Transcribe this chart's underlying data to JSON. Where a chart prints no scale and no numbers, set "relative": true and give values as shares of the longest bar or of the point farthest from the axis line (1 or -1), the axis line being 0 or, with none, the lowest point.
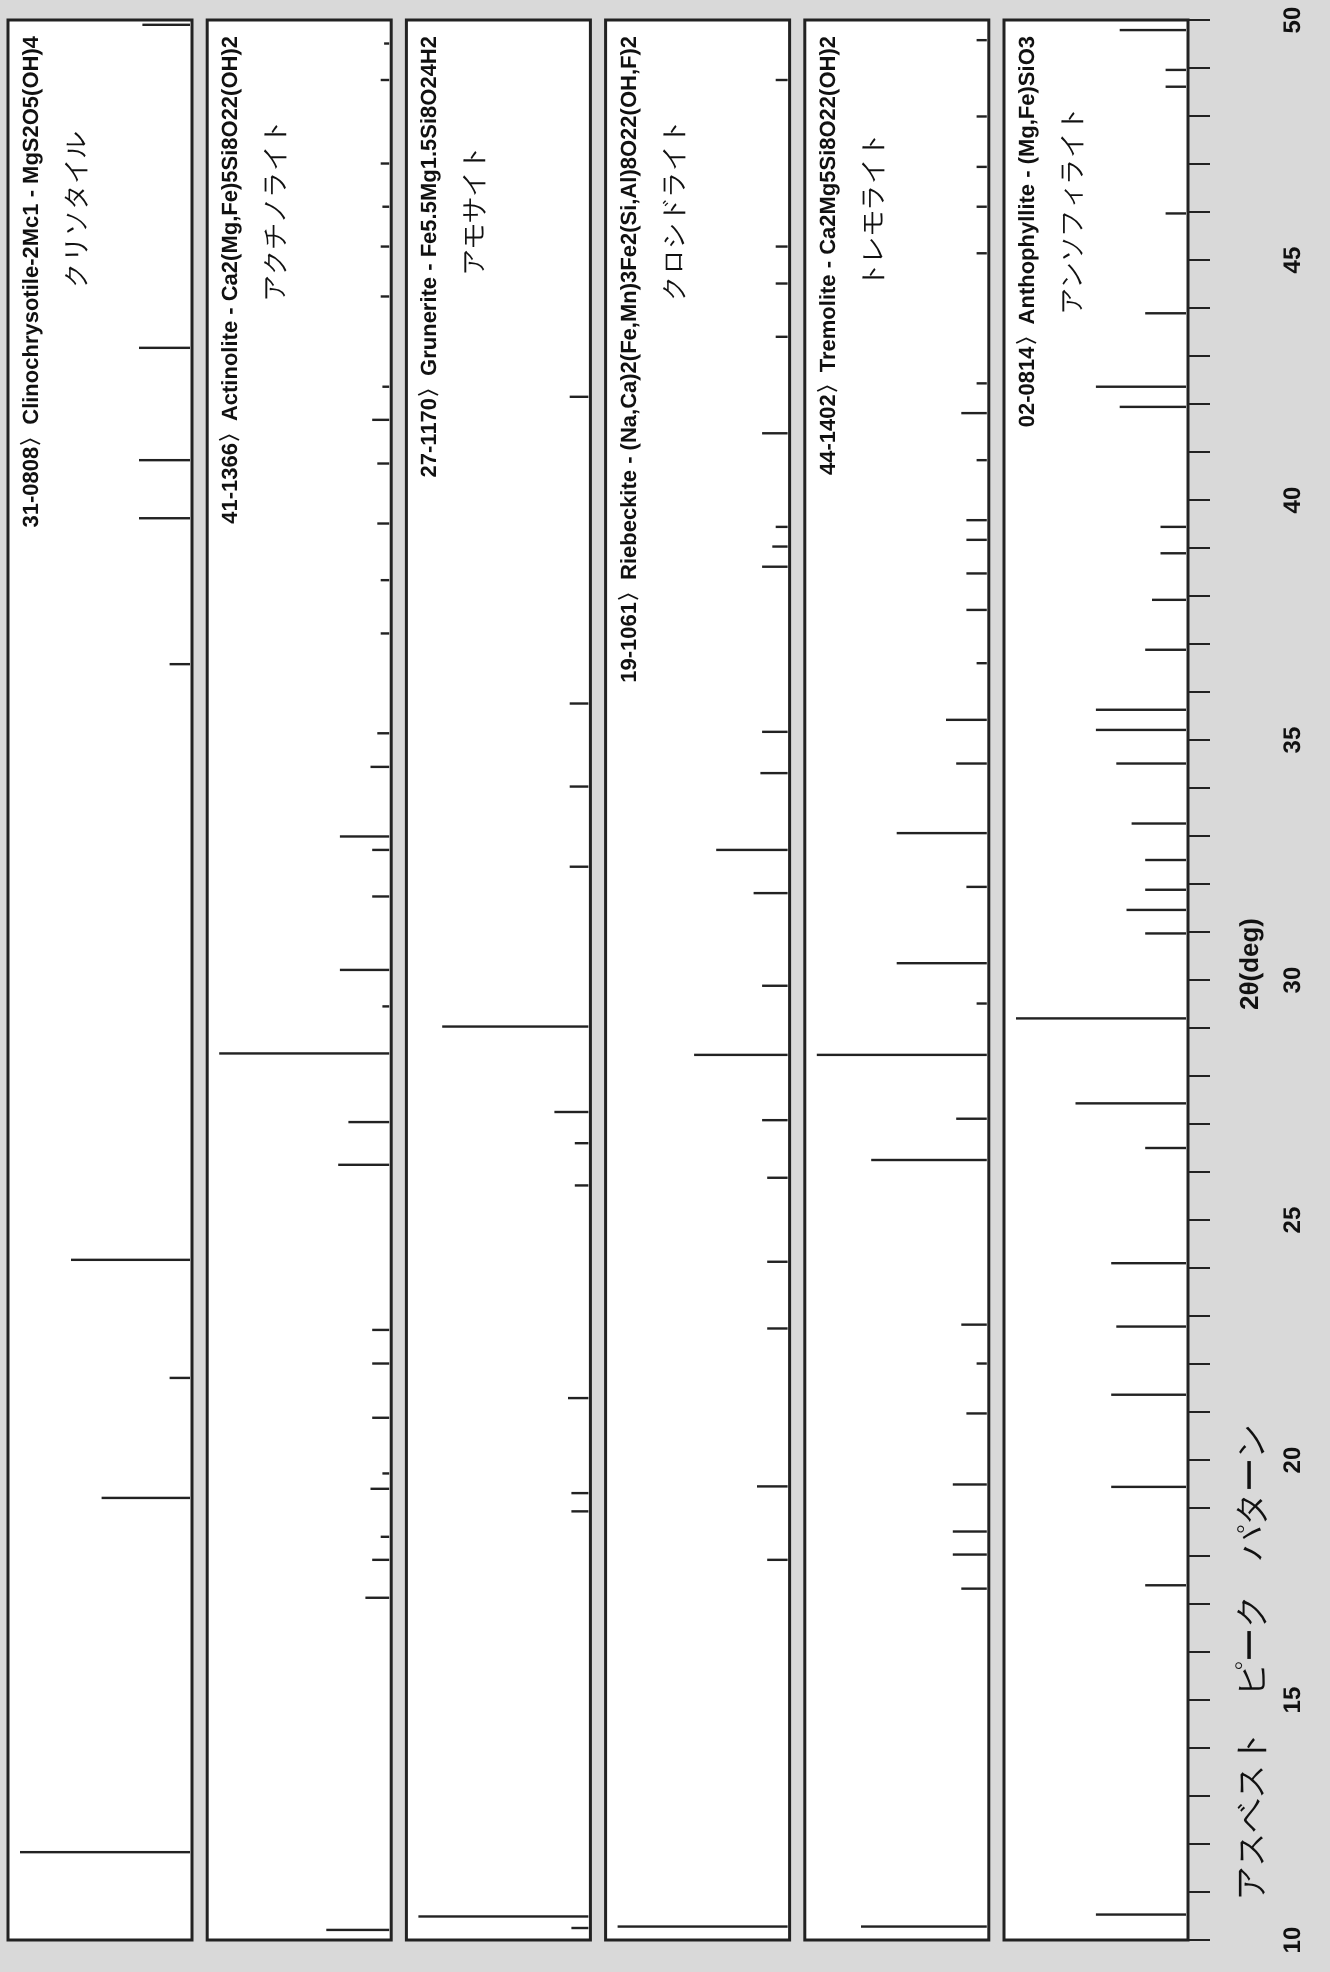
{
  "chart_data": [
    {
      "type": "bar",
      "title": "31-0808〉Clinochrysotile-2Mc1 - MgS2O5(OH)4",
      "subtitle": "クリソタイル",
      "relative": true,
      "orientation": "horizontal",
      "ylim": [
        10,
        50
      ],
      "tick_labels": false,
      "color": "#222222",
      "x": [
        11.83,
        19.21,
        21.71,
        24.17,
        36.58,
        39.62,
        40.83,
        43.17,
        49.9
      ],
      "values": [
        1,
        0.52,
        0.12,
        0.7,
        0.12,
        0.3,
        0.3,
        0.3,
        0.28
      ]
    },
    {
      "type": "bar",
      "title": "41-1366〉Actinolite - Ca2(Mg,Fe)5Si8O22(OH)2",
      "subtitle": "アクチノライト",
      "relative": true,
      "orientation": "horizontal",
      "ylim": [
        10,
        50
      ],
      "tick_labels": false,
      "color": "#222222",
      "x": [
        10.21,
        17.13,
        17.92,
        18.4,
        19.4,
        19.72,
        20.88,
        22.01,
        22.71,
        26.15,
        27.04,
        28.47,
        29.45,
        30.21,
        31.74,
        32.71,
        32.99,
        34.44,
        35.14,
        37.22,
        38.33,
        39.51,
        40.76,
        41.67,
        42.36,
        44.24,
        45.28,
        46.11,
        47.01,
        48.75,
        49.51
      ],
      "values": [
        0.37,
        0.14,
        0.1,
        0.05,
        0.11,
        0.04,
        0.1,
        0.1,
        0.1,
        0.3,
        0.24,
        1,
        0.04,
        0.29,
        0.1,
        0.1,
        0.29,
        0.11,
        0.07,
        0.05,
        0.05,
        0.07,
        0.07,
        0.1,
        0.04,
        0.05,
        0.05,
        0.04,
        0.05,
        0.05,
        0.03
      ]
    },
    {
      "type": "bar",
      "title": "27-1170〉Grunerite - Fe5.5Mg1.5Si8O24H2",
      "subtitle": "アモサイト",
      "relative": true,
      "orientation": "horizontal",
      "ylim": [
        10,
        50
      ],
      "tick_labels": false,
      "color": "#222222",
      "x": [
        10.25,
        10.49,
        18.93,
        19.31,
        21.29,
        25.72,
        26.6,
        27.25,
        29.03,
        32.36,
        34.03,
        35.76,
        42.15
      ],
      "values": [
        0.1,
        1,
        0.1,
        0.1,
        0.12,
        0.08,
        0.08,
        0.2,
        0.86,
        0.11,
        0.11,
        0.11,
        0.11
      ]
    },
    {
      "type": "bar",
      "title": "19-1061〉Riebeckite - (Na,Ca)2(Fe,Mn)3Fe2(Si,Al)8O22(OH,F)2",
      "subtitle": "クロシドライト",
      "relative": true,
      "orientation": "horizontal",
      "ylim": [
        10,
        50
      ],
      "tick_labels": false,
      "color": "#222222",
      "x": [
        10.28,
        17.92,
        19.45,
        22.74,
        24.13,
        25.88,
        27.08,
        28.44,
        29.88,
        31.81,
        32.71,
        34.31,
        35.17,
        38.61,
        39.03,
        39.44,
        41.39,
        43.4,
        44.51,
        45.28,
        48.75
      ],
      "values": [
        1,
        0.12,
        0.18,
        0.12,
        0.12,
        0.12,
        0.15,
        0.55,
        0.15,
        0.2,
        0.42,
        0.16,
        0.15,
        0.15,
        0.09,
        0.07,
        0.15,
        0.07,
        0.07,
        0.07,
        0.07
      ]
    },
    {
      "type": "bar",
      "title": "44-1402〉Tremolite - Ca2Mg5Si8O22(OH)2",
      "subtitle": "トレモライト",
      "relative": true,
      "orientation": "horizontal",
      "ylim": [
        10,
        50
      ],
      "tick_labels": false,
      "color": "#222222",
      "x": [
        10.28,
        17.32,
        18.03,
        18.51,
        19.49,
        20.97,
        22.01,
        22.82,
        26.25,
        27.11,
        28.44,
        29.51,
        30.35,
        31.94,
        33.06,
        34.51,
        35.42,
        36.6,
        37.71,
        38.47,
        39.17,
        39.58,
        40.83,
        41.81,
        42.43,
        45.14,
        46.11,
        46.94,
        47.99,
        49.58
      ],
      "values": [
        0.74,
        0.15,
        0.2,
        0.2,
        0.2,
        0.12,
        0.06,
        0.15,
        0.68,
        0.18,
        1,
        0.06,
        0.53,
        0.12,
        0.53,
        0.18,
        0.24,
        0.06,
        0.12,
        0.12,
        0.12,
        0.12,
        0.06,
        0.15,
        0.06,
        0.06,
        0.06,
        0.06,
        0.06,
        0.06
      ]
    },
    {
      "type": "bar",
      "title": "02-0814〉Anthophyllite - (Mg,Fe)SiO3",
      "subtitle": "アンソフィライト",
      "relative": true,
      "orientation": "horizontal",
      "ylim": [
        10,
        50
      ],
      "tick_labels": "y",
      "color": "#222222",
      "ylabel": "2θ(deg)",
      "annotations": [
        "アスベスト　ピーク　パターン"
      ],
      "yticks": [
        10,
        {
          "value": 11,
          "label": null
        },
        {
          "value": 12,
          "label": null
        },
        {
          "value": 13,
          "label": null
        },
        {
          "value": 14,
          "label": null
        },
        15,
        {
          "value": 16,
          "label": null
        },
        {
          "value": 17,
          "label": null
        },
        {
          "value": 18,
          "label": null
        },
        {
          "value": 19,
          "label": null
        },
        20,
        {
          "value": 21,
          "label": null
        },
        {
          "value": 22,
          "label": null
        },
        {
          "value": 23,
          "label": null
        },
        {
          "value": 24,
          "label": null
        },
        25,
        {
          "value": 26,
          "label": null
        },
        {
          "value": 27,
          "label": null
        },
        {
          "value": 28,
          "label": null
        },
        {
          "value": 29,
          "label": null
        },
        30,
        {
          "value": 31,
          "label": null
        },
        {
          "value": 32,
          "label": null
        },
        {
          "value": 33,
          "label": null
        },
        {
          "value": 34,
          "label": null
        },
        35,
        {
          "value": 36,
          "label": null
        },
        {
          "value": 37,
          "label": null
        },
        {
          "value": 38,
          "label": null
        },
        {
          "value": 39,
          "label": null
        },
        40,
        {
          "value": 41,
          "label": null
        },
        {
          "value": 42,
          "label": null
        },
        {
          "value": 43,
          "label": null
        },
        {
          "value": 44,
          "label": null
        },
        45,
        {
          "value": 46,
          "label": null
        },
        {
          "value": 47,
          "label": null
        },
        {
          "value": 48,
          "label": null
        },
        {
          "value": 49,
          "label": null
        },
        50
      ],
      "x": [
        10.53,
        17.39,
        19.44,
        21.36,
        22.78,
        24.1,
        26.5,
        27.43,
        29.2,
        30.97,
        31.46,
        31.88,
        32.5,
        33.26,
        34.51,
        35.21,
        35.63,
        36.88,
        37.92,
        38.89,
        39.44,
        41.94,
        42.36,
        43.89,
        45.97,
        48.61,
        48.96,
        49.79
      ],
      "values": [
        0.53,
        0.24,
        0.44,
        0.44,
        0.41,
        0.44,
        0.24,
        0.65,
        1,
        0.24,
        0.35,
        0.24,
        0.24,
        0.32,
        0.41,
        0.53,
        0.53,
        0.24,
        0.2,
        0.15,
        0.15,
        0.39,
        0.53,
        0.24,
        0.12,
        0.12,
        0.12,
        0.39
      ]
    }
  ]
}
